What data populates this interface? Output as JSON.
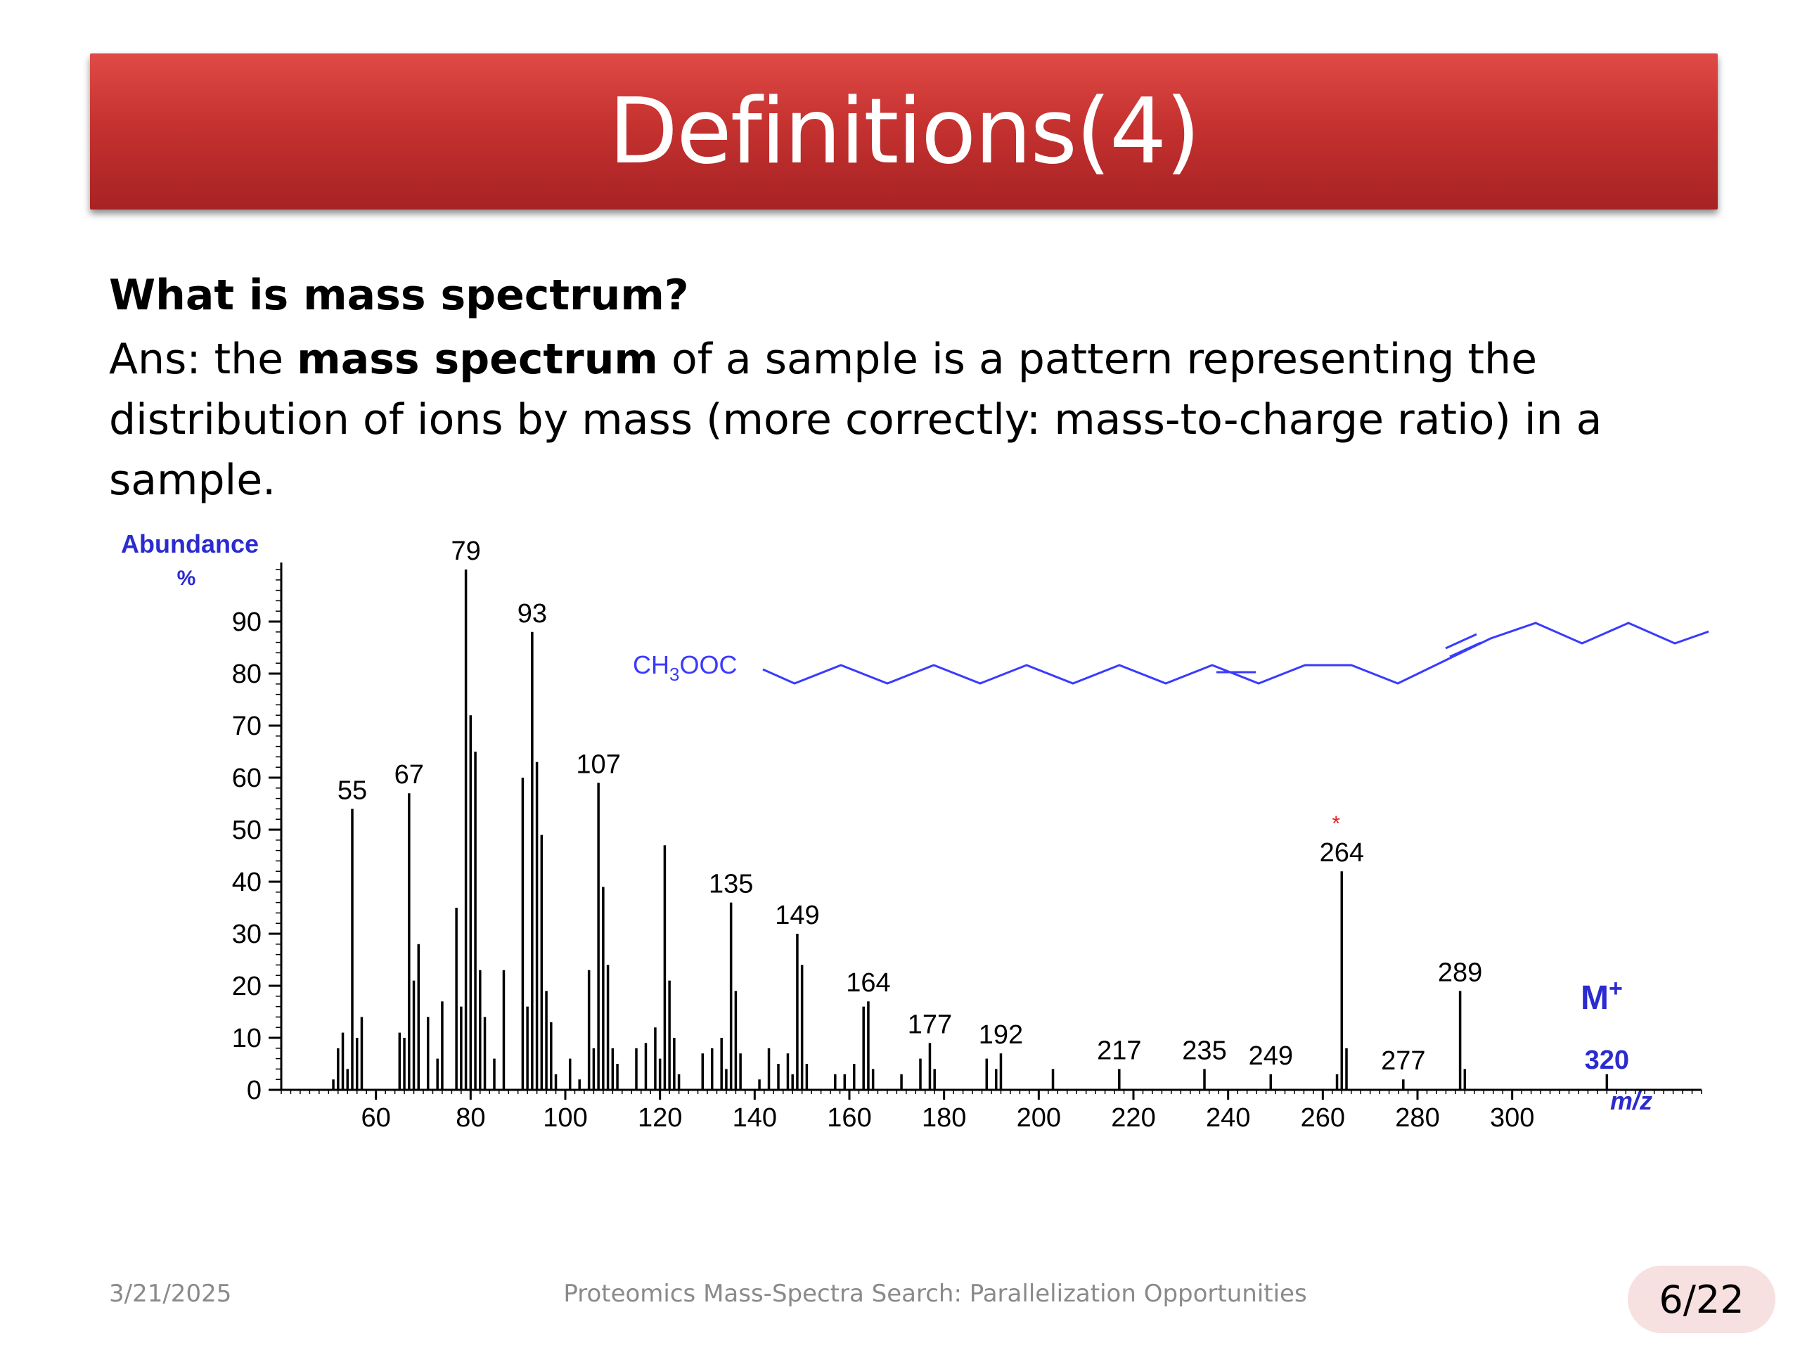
{
  "slide": {
    "title": "Definitions(4)",
    "question": "What is mass spectrum?",
    "answer_prefix": "Ans: the ",
    "answer_bold": "mass spectrum",
    "answer_suffix": " of a sample is a pattern representing the distribution of ions by mass (more correctly: mass-to-charge ratio) in a sample."
  },
  "footer": {
    "date": "3/21/2025",
    "title": "Proteomics Mass-Spectra Search: Parallelization  Opportunities",
    "page": "6/22"
  },
  "colors": {
    "banner": "#c53230",
    "axis_title": "#2b2bd0",
    "molecule": "#3a3aff",
    "marker": "#e02020"
  },
  "chart_data": {
    "type": "bar",
    "ylabel": "Abundance",
    "ylabel_unit": "%",
    "xlabel": "m/z",
    "xlim": [
      40,
      340
    ],
    "ylim": [
      0,
      100
    ],
    "x_ticks": [
      60,
      80,
      100,
      120,
      140,
      160,
      180,
      200,
      220,
      240,
      260,
      280,
      300
    ],
    "y_ticks": [
      0,
      10,
      20,
      30,
      40,
      50,
      60,
      70,
      80,
      90
    ],
    "grid": false,
    "peaks": [
      {
        "mz": 51,
        "value": 2
      },
      {
        "mz": 52,
        "value": 8
      },
      {
        "mz": 53,
        "value": 11
      },
      {
        "mz": 54,
        "value": 4
      },
      {
        "mz": 55,
        "value": 54
      },
      {
        "mz": 56,
        "value": 10
      },
      {
        "mz": 57,
        "value": 14
      },
      {
        "mz": 65,
        "value": 11
      },
      {
        "mz": 66,
        "value": 10
      },
      {
        "mz": 67,
        "value": 57
      },
      {
        "mz": 68,
        "value": 21
      },
      {
        "mz": 69,
        "value": 28
      },
      {
        "mz": 71,
        "value": 14
      },
      {
        "mz": 73,
        "value": 6
      },
      {
        "mz": 74,
        "value": 17
      },
      {
        "mz": 77,
        "value": 35
      },
      {
        "mz": 78,
        "value": 16
      },
      {
        "mz": 79,
        "value": 100
      },
      {
        "mz": 80,
        "value": 72
      },
      {
        "mz": 81,
        "value": 65
      },
      {
        "mz": 82,
        "value": 23
      },
      {
        "mz": 83,
        "value": 14
      },
      {
        "mz": 85,
        "value": 6
      },
      {
        "mz": 87,
        "value": 23
      },
      {
        "mz": 91,
        "value": 60
      },
      {
        "mz": 92,
        "value": 16
      },
      {
        "mz": 93,
        "value": 88
      },
      {
        "mz": 94,
        "value": 63
      },
      {
        "mz": 95,
        "value": 49
      },
      {
        "mz": 96,
        "value": 19
      },
      {
        "mz": 97,
        "value": 13
      },
      {
        "mz": 98,
        "value": 3
      },
      {
        "mz": 101,
        "value": 6
      },
      {
        "mz": 103,
        "value": 2
      },
      {
        "mz": 105,
        "value": 23
      },
      {
        "mz": 106,
        "value": 8
      },
      {
        "mz": 107,
        "value": 59
      },
      {
        "mz": 108,
        "value": 39
      },
      {
        "mz": 109,
        "value": 24
      },
      {
        "mz": 110,
        "value": 8
      },
      {
        "mz": 111,
        "value": 5
      },
      {
        "mz": 115,
        "value": 8
      },
      {
        "mz": 117,
        "value": 9
      },
      {
        "mz": 119,
        "value": 12
      },
      {
        "mz": 120,
        "value": 6
      },
      {
        "mz": 121,
        "value": 47
      },
      {
        "mz": 122,
        "value": 21
      },
      {
        "mz": 123,
        "value": 10
      },
      {
        "mz": 124,
        "value": 3
      },
      {
        "mz": 129,
        "value": 7
      },
      {
        "mz": 131,
        "value": 8
      },
      {
        "mz": 133,
        "value": 10
      },
      {
        "mz": 134,
        "value": 4
      },
      {
        "mz": 135,
        "value": 36
      },
      {
        "mz": 136,
        "value": 19
      },
      {
        "mz": 137,
        "value": 7
      },
      {
        "mz": 141,
        "value": 2
      },
      {
        "mz": 143,
        "value": 8
      },
      {
        "mz": 145,
        "value": 5
      },
      {
        "mz": 147,
        "value": 7
      },
      {
        "mz": 148,
        "value": 3
      },
      {
        "mz": 149,
        "value": 30
      },
      {
        "mz": 150,
        "value": 24
      },
      {
        "mz": 151,
        "value": 5
      },
      {
        "mz": 157,
        "value": 3
      },
      {
        "mz": 159,
        "value": 3
      },
      {
        "mz": 161,
        "value": 5
      },
      {
        "mz": 163,
        "value": 16
      },
      {
        "mz": 164,
        "value": 17
      },
      {
        "mz": 165,
        "value": 4
      },
      {
        "mz": 171,
        "value": 3
      },
      {
        "mz": 175,
        "value": 6
      },
      {
        "mz": 177,
        "value": 9
      },
      {
        "mz": 178,
        "value": 4
      },
      {
        "mz": 189,
        "value": 6
      },
      {
        "mz": 191,
        "value": 4
      },
      {
        "mz": 192,
        "value": 7
      },
      {
        "mz": 203,
        "value": 4
      },
      {
        "mz": 217,
        "value": 4
      },
      {
        "mz": 235,
        "value": 4
      },
      {
        "mz": 249,
        "value": 3
      },
      {
        "mz": 263,
        "value": 3
      },
      {
        "mz": 264,
        "value": 42
      },
      {
        "mz": 265,
        "value": 8
      },
      {
        "mz": 277,
        "value": 2
      },
      {
        "mz": 289,
        "value": 19
      },
      {
        "mz": 290,
        "value": 4
      },
      {
        "mz": 320,
        "value": 3
      }
    ],
    "peak_labels": [
      {
        "mz": 55,
        "text": "55"
      },
      {
        "mz": 67,
        "text": "67"
      },
      {
        "mz": 79,
        "text": "79"
      },
      {
        "mz": 93,
        "text": "93"
      },
      {
        "mz": 107,
        "text": "107"
      },
      {
        "mz": 135,
        "text": "135"
      },
      {
        "mz": 149,
        "text": "149"
      },
      {
        "mz": 164,
        "text": "164"
      },
      {
        "mz": 177,
        "text": "177"
      },
      {
        "mz": 192,
        "text": "192"
      },
      {
        "mz": 217,
        "text": "217"
      },
      {
        "mz": 235,
        "text": "235"
      },
      {
        "mz": 249,
        "text": "249"
      },
      {
        "mz": 264,
        "text": "264"
      },
      {
        "mz": 277,
        "text": "277"
      },
      {
        "mz": 289,
        "text": "289"
      },
      {
        "mz": 320,
        "text": "320"
      }
    ],
    "annotations": {
      "molecular_ion": "M",
      "molecular_ion_sup": "+",
      "molecular_ion_value": "320",
      "marker_264": "*",
      "structure_label": "CH",
      "structure_label_sub": "3",
      "structure_label_rest": "OOC"
    }
  }
}
